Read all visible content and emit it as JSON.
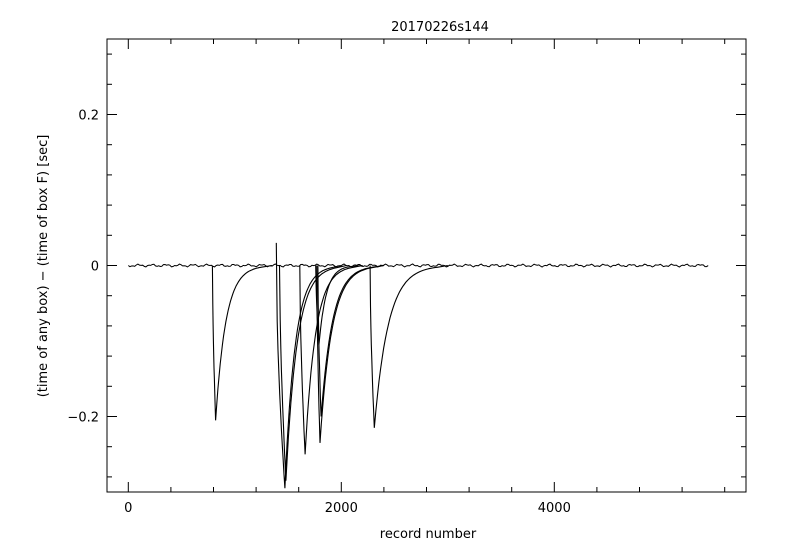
{
  "chart_data": {
    "type": "line",
    "title": "20170226s144",
    "xlabel": "record number",
    "ylabel": "(time of any box) − (time of box F) [sec]",
    "xlim": [
      -200,
      5800
    ],
    "ylim": [
      -0.3,
      0.3
    ],
    "x_ticks": [
      0,
      2000,
      4000
    ],
    "x_tick_labels": [
      "0",
      "2000",
      "4000"
    ],
    "y_ticks": [
      -0.2,
      0,
      0.2
    ],
    "y_tick_labels": [
      "−0.2",
      "0",
      "0.2"
    ],
    "grid": false,
    "legend": "none",
    "line_color": "#000000",
    "baseline": {
      "x_start": 0,
      "x_end": 5450,
      "y": 0
    },
    "dips": [
      {
        "start": 790,
        "min_x": 820,
        "min_y": -0.205,
        "recover_to": 1250
      },
      {
        "start": 1390,
        "min_x": 1470,
        "min_y": -0.295,
        "recover_to": 1900,
        "spike_y": 0.03
      },
      {
        "start": 1420,
        "min_x": 1480,
        "min_y": -0.285,
        "recover_to": 1950
      },
      {
        "start": 1610,
        "min_x": 1660,
        "min_y": -0.25,
        "recover_to": 2100
      },
      {
        "start": 1760,
        "min_x": 1790,
        "min_y": -0.105,
        "recover_to": 2100
      },
      {
        "start": 1770,
        "min_x": 1800,
        "min_y": -0.235,
        "recover_to": 2300
      },
      {
        "start": 1780,
        "min_x": 1810,
        "min_y": -0.2,
        "recover_to": 2300
      },
      {
        "start": 2270,
        "min_x": 2310,
        "min_y": -0.215,
        "recover_to": 2900
      }
    ]
  }
}
